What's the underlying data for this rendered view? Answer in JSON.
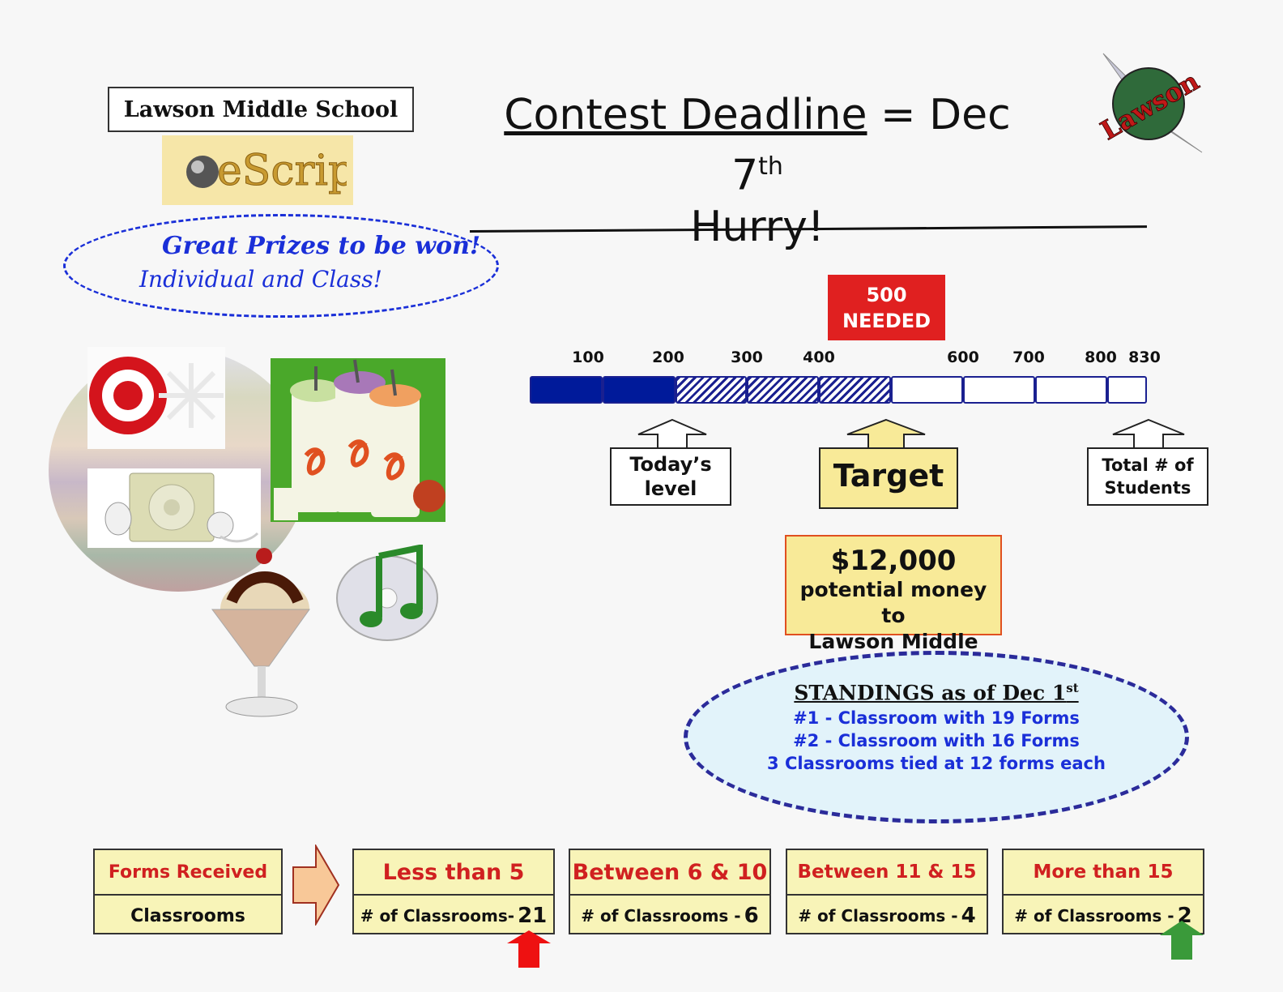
{
  "header": {
    "school_name": "Lawson Middle School",
    "escrip_logo": "eScrip",
    "corner_logo": "Lawson",
    "deadline_label": "Contest Deadline",
    "deadline_eq": " = Dec 7",
    "deadline_sup": "th",
    "hurry": "Hurry!"
  },
  "prizes": {
    "line1": "Great Prizes to be won!",
    "line2": "Individual and Class!"
  },
  "progress": {
    "needed_number": "500",
    "needed_label": "NEEDED",
    "ticks": [
      "100",
      "200",
      "300",
      "400",
      "600",
      "700",
      "800",
      "830"
    ],
    "current_level": 200,
    "target_level": 500,
    "total_students": 830,
    "callouts": {
      "today": "Today’s level",
      "target": "Target",
      "total": "Total # of Students"
    }
  },
  "money": {
    "amount": "$12,000",
    "line1": "potential money to",
    "line2": "Lawson Middle"
  },
  "standings": {
    "title": "STANDINGS as of Dec 1",
    "title_sup": "st",
    "lines": [
      "#1 - Classroom with 19 Forms",
      "#2 - Classroom with 16 Forms",
      "3 Classrooms tied at 12 forms each"
    ]
  },
  "forms_table": {
    "header_top": "Forms Received",
    "header_bottom": "Classrooms",
    "bins": [
      {
        "range": "Less than 5",
        "count_label": "# of Classrooms-",
        "count": "21"
      },
      {
        "range": "Between 6 & 10",
        "count_label": "# of Classrooms -",
        "count": "6"
      },
      {
        "range": "Between 11 & 15",
        "count_label": "# of Classrooms -",
        "count": "4"
      },
      {
        "range": "More than 15",
        "count_label": "# of Classrooms -",
        "count": "2"
      }
    ]
  },
  "colors": {
    "needed_bg": "#e02020",
    "bar_fill": "#001a9a",
    "callout_yellow": "#f8ea98",
    "standings_text": "#1a2fd8",
    "down_arrow": "#ee1111",
    "up_arrow": "#3a9a3a"
  }
}
